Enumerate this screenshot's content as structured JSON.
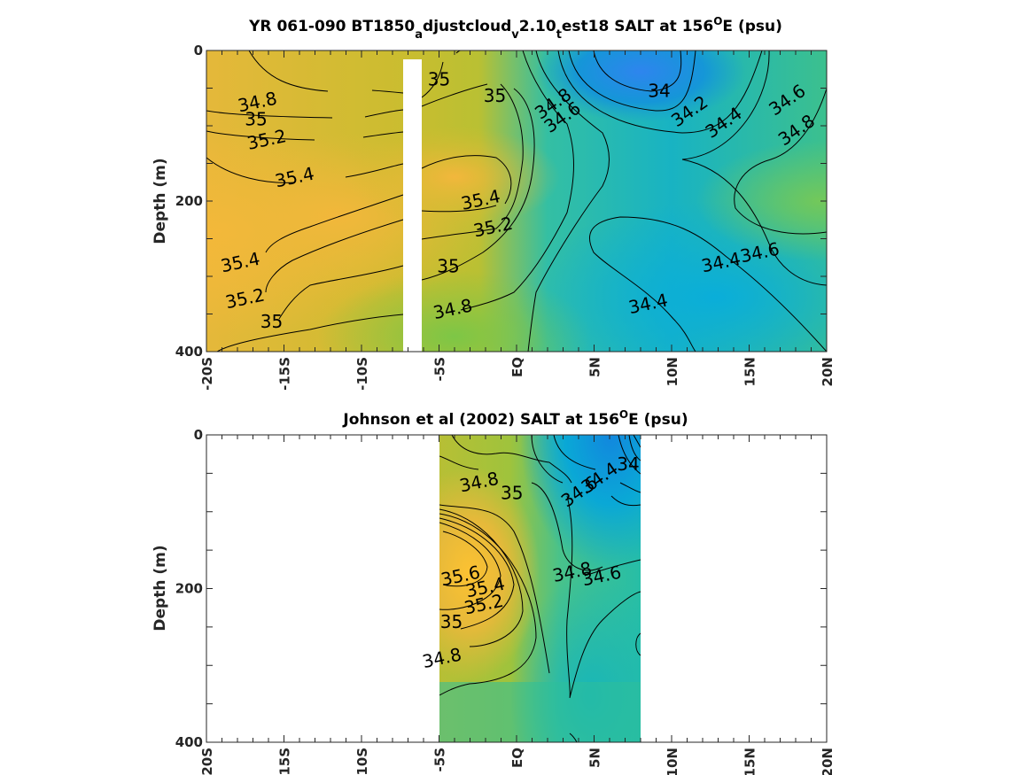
{
  "chart_data": [
    {
      "type": "heatmap",
      "title": "YR 061-090 BT1850_adjustcloud_v2.10_test18 SALT at 156°E (psu)",
      "title_parts": {
        "a": "YR 061-090 BT1850",
        "sub1": "a",
        "b": "djustcloud",
        "sub2": "v",
        "c": "2.10",
        "sub3": "t",
        "d": "est18 SALT at 156",
        "sup": "O",
        "e": "E (psu)"
      },
      "xlabel": "",
      "ylabel": "Depth (m)",
      "xlim": [
        -20,
        20
      ],
      "ylim": [
        400,
        0
      ],
      "y_ticks": [
        0,
        200,
        400
      ],
      "x_ticks": [
        -20,
        -15,
        -10,
        -5,
        0,
        5,
        10,
        15,
        20
      ],
      "x_tick_labels": [
        "-20S",
        "-15S",
        "-10S",
        "-5S",
        "EQ",
        "5N",
        "10N",
        "15N",
        "20N"
      ],
      "colormap": "parula",
      "color_range": [
        34.0,
        35.8
      ],
      "land_mask_x": [
        -7.2,
        -6.0
      ],
      "grid": false,
      "contour_labels": [
        {
          "x": -16.7,
          "y": 70,
          "v": "34.8"
        },
        {
          "x": -16.8,
          "y": 93,
          "v": "35"
        },
        {
          "x": -16.1,
          "y": 120,
          "v": "35.2"
        },
        {
          "x": -14.3,
          "y": 170,
          "v": "35.4"
        },
        {
          "x": -5.0,
          "y": 40,
          "v": "35"
        },
        {
          "x": -1.4,
          "y": 62,
          "v": "35"
        },
        {
          "x": 2.4,
          "y": 72,
          "v": "34.8"
        },
        {
          "x": 3.0,
          "y": 90,
          "v": "34.6"
        },
        {
          "x": 9.2,
          "y": 55,
          "v": "34"
        },
        {
          "x": 11.2,
          "y": 82,
          "v": "34.2"
        },
        {
          "x": 13.4,
          "y": 97,
          "v": "34.4"
        },
        {
          "x": 17.5,
          "y": 67,
          "v": "34.6"
        },
        {
          "x": 18.1,
          "y": 107,
          "v": "34.8"
        },
        {
          "x": -2.3,
          "y": 200,
          "v": "35.4"
        },
        {
          "x": -1.5,
          "y": 236,
          "v": "35.2"
        },
        {
          "x": -4.4,
          "y": 288,
          "v": "35"
        },
        {
          "x": -4.1,
          "y": 345,
          "v": "34.8"
        },
        {
          "x": -17.8,
          "y": 283,
          "v": "35.4"
        },
        {
          "x": -17.5,
          "y": 331,
          "v": "35.2"
        },
        {
          "x": -15.8,
          "y": 362,
          "v": "35"
        },
        {
          "x": 13.2,
          "y": 283,
          "v": "34.4"
        },
        {
          "x": 15.7,
          "y": 270,
          "v": "34.6"
        },
        {
          "x": 8.5,
          "y": 338,
          "v": "34.4"
        }
      ]
    },
    {
      "type": "heatmap",
      "title": "Johnson et al (2002) SALT at 156°E (psu)",
      "title_parts": {
        "a": "Johnson et al (2002) SALT at 156",
        "sup": "O",
        "b": "E (psu)"
      },
      "xlabel": "",
      "ylabel": "Depth (m)",
      "xlim": [
        -20,
        20
      ],
      "ylim": [
        400,
        0
      ],
      "y_ticks": [
        0,
        200,
        400
      ],
      "x_ticks": [
        -20,
        -15,
        -10,
        -5,
        0,
        5,
        10,
        15,
        20
      ],
      "x_tick_labels": [
        "-20S",
        "-15S",
        "-10S",
        "-5S",
        "EQ",
        "5N",
        "10N",
        "15N",
        "20N"
      ],
      "colormap": "parula",
      "color_range": [
        34.0,
        35.8
      ],
      "data_x_range": [
        -5,
        8
      ],
      "grid": false,
      "contour_labels": [
        {
          "x": 7.2,
          "y": 40,
          "v": "34"
        },
        {
          "x": 5.4,
          "y": 57,
          "v": "34.4"
        },
        {
          "x": 4.1,
          "y": 75,
          "v": "34.6"
        },
        {
          "x": -2.4,
          "y": 63,
          "v": "34.8"
        },
        {
          "x": -0.3,
          "y": 77,
          "v": "35"
        },
        {
          "x": -3.6,
          "y": 185,
          "v": "35.6"
        },
        {
          "x": -2.0,
          "y": 200,
          "v": "35.4"
        },
        {
          "x": -2.1,
          "y": 222,
          "v": "35.2"
        },
        {
          "x": -4.2,
          "y": 245,
          "v": "35"
        },
        {
          "x": 3.6,
          "y": 180,
          "v": "34.8"
        },
        {
          "x": 5.5,
          "y": 185,
          "v": "34.6"
        },
        {
          "x": -4.8,
          "y": 292,
          "v": "34.8"
        }
      ]
    }
  ]
}
